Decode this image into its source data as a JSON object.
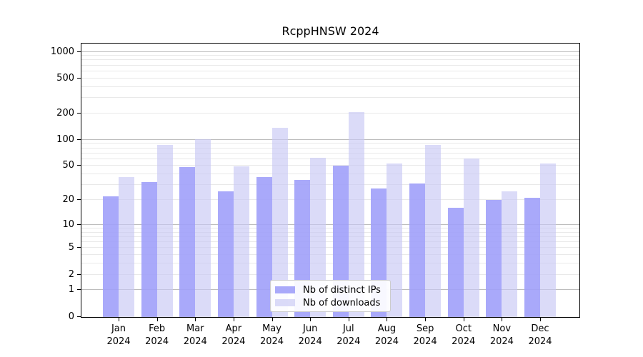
{
  "chart": {
    "type": "bar",
    "title": "RcppHNSW 2024",
    "year": "2024",
    "months": [
      "Jan",
      "Feb",
      "Mar",
      "Apr",
      "May",
      "Jun",
      "Jul",
      "Aug",
      "Sep",
      "Oct",
      "Nov",
      "Dec"
    ],
    "series": [
      {
        "name": "Nb of distinct IPs",
        "color": "#a0a0f9",
        "alpha": 0.9,
        "values": [
          22,
          32,
          48,
          25,
          37,
          34,
          50,
          27,
          31,
          16,
          20,
          21
        ]
      },
      {
        "name": "Nb of downloads",
        "color": "#c8c8f5",
        "alpha": 0.65,
        "values": [
          37,
          87,
          100,
          49,
          136,
          62,
          205,
          53,
          87,
          60,
          25,
          53
        ]
      }
    ],
    "yscale": "log1p",
    "ylim": [
      0,
      1000
    ],
    "yticks": [
      0,
      1,
      2,
      5,
      10,
      20,
      50,
      100,
      200,
      500,
      1000
    ],
    "major_gridlines": [
      1,
      10,
      100,
      1000
    ],
    "minor_gridlines": [
      2,
      3,
      4,
      5,
      6,
      7,
      8,
      9,
      20,
      30,
      40,
      50,
      60,
      70,
      80,
      90,
      200,
      300,
      400,
      500,
      600,
      700,
      800,
      900
    ],
    "legend_position": "lower center",
    "grid": true,
    "colors": {
      "major_grid": "#bdbdbd",
      "minor_grid": "#e9e9e9",
      "axis": "#000000",
      "legend_border": "#cccccc",
      "background": "#ffffff",
      "text": "#000000"
    }
  }
}
